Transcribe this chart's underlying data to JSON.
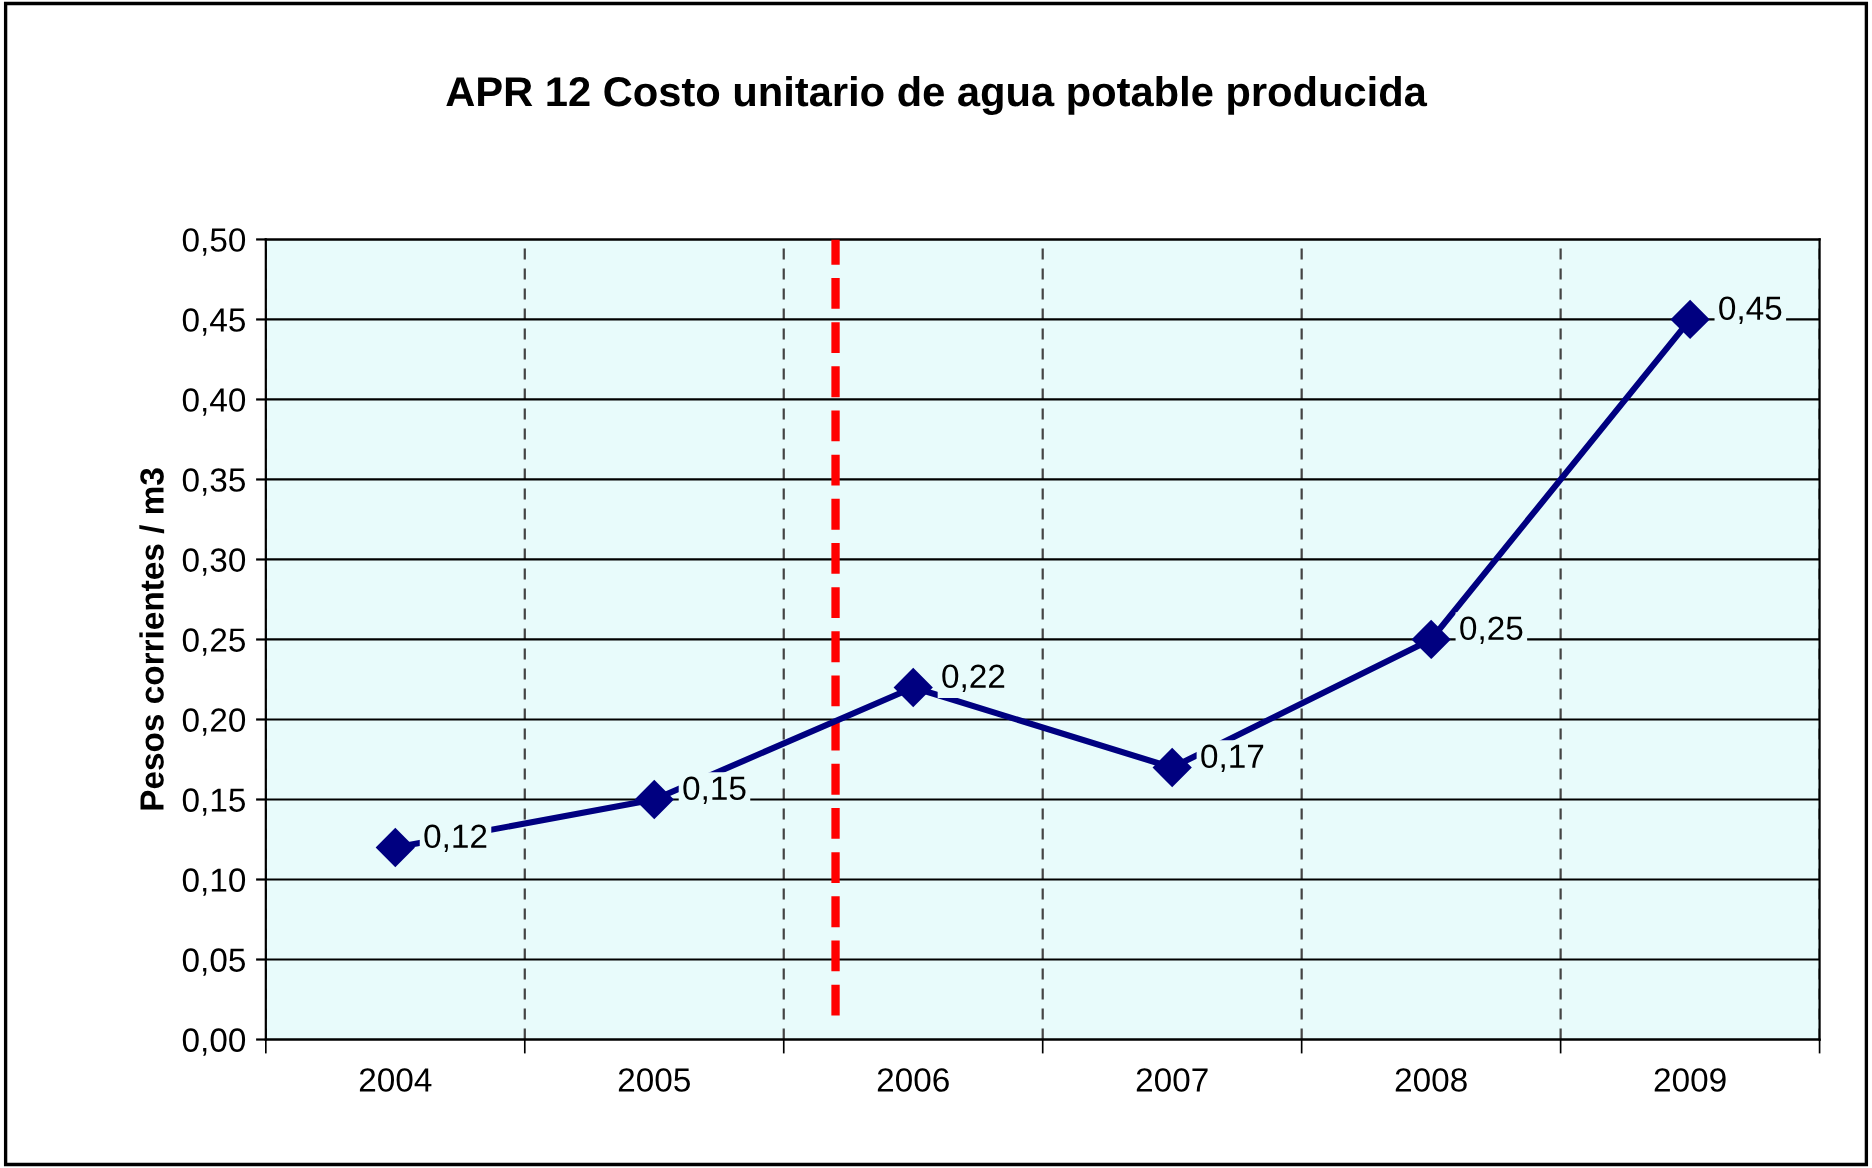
{
  "chart_data": {
    "type": "line",
    "title": "APR 12 Costo unitario de agua potable producida",
    "ylabel": "Pesos corrientes / m3",
    "x": [
      2004,
      2005,
      2006,
      2007,
      2008,
      2009
    ],
    "series": [
      {
        "color": "#000080",
        "values": [
          0.12,
          0.15,
          0.22,
          0.17,
          0.25,
          0.45
        ],
        "value_labels": [
          "0,12",
          "0,15",
          "0,22",
          "0,17",
          "0,25",
          "0,45"
        ]
      }
    ],
    "xlim": [
      2003.5,
      2009.5
    ],
    "xticks": [
      {
        "value": 2003.5,
        "label": null
      },
      2004,
      {
        "value": 2004.5,
        "label": null
      },
      2005,
      {
        "value": 2005.5,
        "label": null
      },
      2006,
      {
        "value": 2006.5,
        "label": null
      },
      2007,
      {
        "value": 2007.5,
        "label": null
      },
      2008,
      {
        "value": 2008.5,
        "label": null
      },
      2009,
      {
        "value": 2009.5,
        "label": null
      }
    ],
    "ylim": [
      0,
      0.5
    ],
    "yticks": [
      {
        "value": 0,
        "label": "0,00"
      },
      {
        "value": 0.05,
        "label": "0,05"
      },
      {
        "value": 0.1,
        "label": "0,10"
      },
      {
        "value": 0.15,
        "label": "0,15"
      },
      {
        "value": 0.2,
        "label": "0,20"
      },
      {
        "value": 0.25,
        "label": "0,25"
      },
      {
        "value": 0.3,
        "label": "0,30"
      },
      {
        "value": 0.35,
        "label": "0,35"
      },
      {
        "value": 0.4,
        "label": "0,40"
      },
      {
        "value": 0.45,
        "label": "0,45"
      },
      {
        "value": 0.5,
        "label": "0,50"
      }
    ],
    "ref_lines": [
      {
        "axis": "x",
        "value": 2005.7,
        "color": "#ff0000",
        "line_style": "dashed"
      }
    ],
    "grid": true,
    "marker": "diamond",
    "line_style": "solid",
    "legend": false
  }
}
